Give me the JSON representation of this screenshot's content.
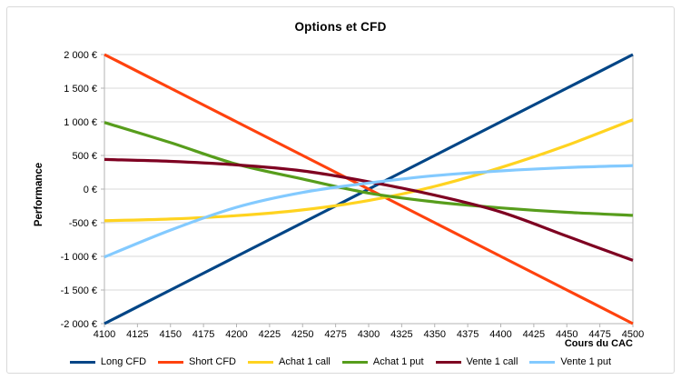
{
  "chart_data": {
    "type": "line",
    "title": "Options et CFD",
    "xlabel": "Cours du CAC",
    "ylabel": "Performance",
    "xlim": [
      4100,
      4500
    ],
    "ylim": [
      -2000,
      2000
    ],
    "grid": "horizontal",
    "line_smoothing": true,
    "legend_position": "bottom",
    "x_ticks": [
      4100,
      4125,
      4150,
      4175,
      4200,
      4225,
      4250,
      4275,
      4300,
      4325,
      4350,
      4375,
      4400,
      4425,
      4450,
      4475,
      4500
    ],
    "x_tick_labels": [
      "4100",
      "4125",
      "4150",
      "4175",
      "4200",
      "4225",
      "4250",
      "4275",
      "4300",
      "4325",
      "4350",
      "4375",
      "4400",
      "4425",
      "4450",
      "4475",
      "4500"
    ],
    "y_ticks": [
      2000,
      1500,
      1000,
      500,
      0,
      -500,
      -1000,
      -1500,
      -2000
    ],
    "y_tick_labels": [
      "2 000 €",
      "1 500 €",
      "1 000 €",
      "500 €",
      "0 €",
      "-500 €",
      "-1 000 €",
      "-1 500 €",
      "-2 000 €"
    ],
    "x": [
      4100,
      4150,
      4200,
      4250,
      4300,
      4350,
      4400,
      4450,
      4500
    ],
    "series": [
      {
        "name": "Long CFD",
        "color": "#004586",
        "values": [
          -2000,
          -1500,
          -1000,
          -500,
          0,
          500,
          1000,
          1500,
          2000
        ]
      },
      {
        "name": "Short CFD",
        "color": "#FF420E",
        "values": [
          2000,
          1500,
          1000,
          500,
          0,
          -500,
          -1000,
          -1500,
          -2000
        ]
      },
      {
        "name": "Achat 1 call",
        "color": "#FFD320",
        "values": [
          -470,
          -445,
          -395,
          -310,
          -170,
          40,
          320,
          650,
          1030
        ]
      },
      {
        "name": "Achat 1 put",
        "color": "#579D1C",
        "values": [
          990,
          690,
          370,
          150,
          -60,
          -190,
          -280,
          -345,
          -390
        ]
      },
      {
        "name": "Vente 1 call",
        "color": "#7E0021",
        "values": [
          440,
          412,
          360,
          270,
          110,
          -90,
          -340,
          -700,
          -1060
        ]
      },
      {
        "name": "Vente 1 put",
        "color": "#83CAFF",
        "values": [
          -1010,
          -610,
          -270,
          -50,
          90,
          200,
          270,
          320,
          350
        ]
      }
    ]
  },
  "frame": {
    "background": "#ffffff",
    "card_border_color": "#d9d9d9",
    "grid_color": "#d9d9d9",
    "axis_color": "#b3b3b3",
    "text_color": "#000000"
  }
}
